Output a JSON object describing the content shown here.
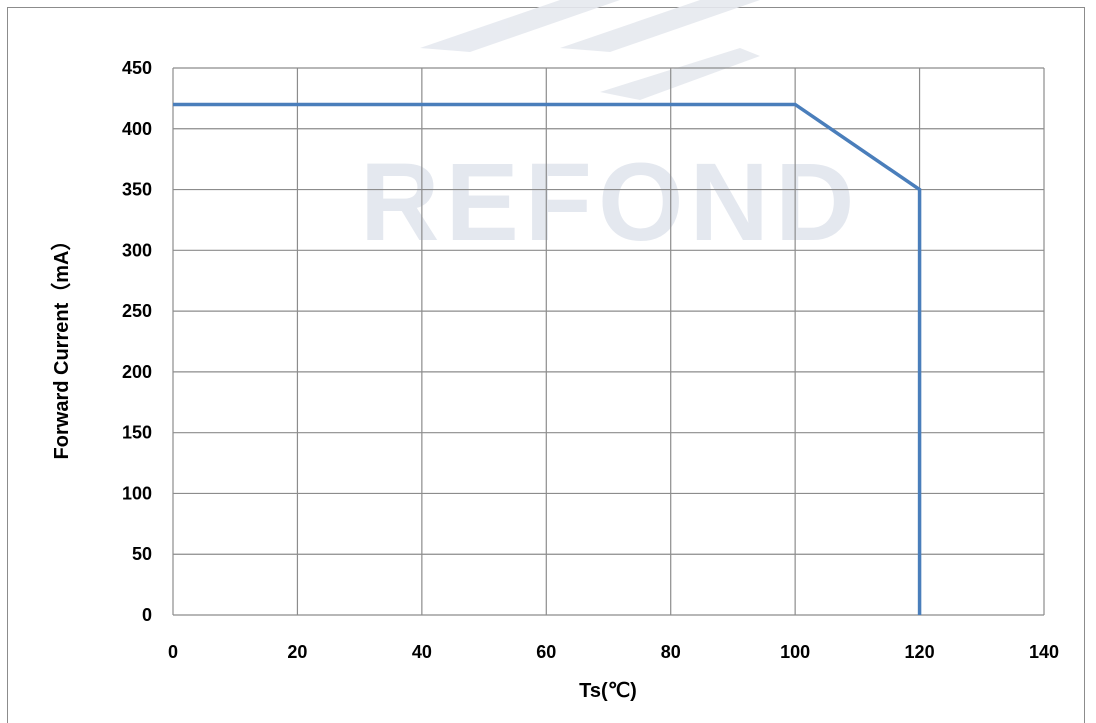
{
  "watermark": "REFOND",
  "chart_data": {
    "type": "line",
    "title": "",
    "xlabel": "Ts(℃)",
    "ylabel": "Forward Current（mA）",
    "xlim": [
      0,
      140
    ],
    "ylim": [
      0,
      450
    ],
    "x_ticks": [
      0,
      20,
      40,
      60,
      80,
      100,
      120,
      140
    ],
    "y_ticks": [
      0,
      50,
      100,
      150,
      200,
      250,
      300,
      350,
      400,
      450
    ],
    "grid": true,
    "legend": "none",
    "series": [
      {
        "color": "#4a7ebb",
        "points": [
          [
            0,
            420
          ],
          [
            100,
            420
          ],
          [
            120,
            350
          ],
          [
            120,
            0
          ]
        ]
      }
    ]
  }
}
